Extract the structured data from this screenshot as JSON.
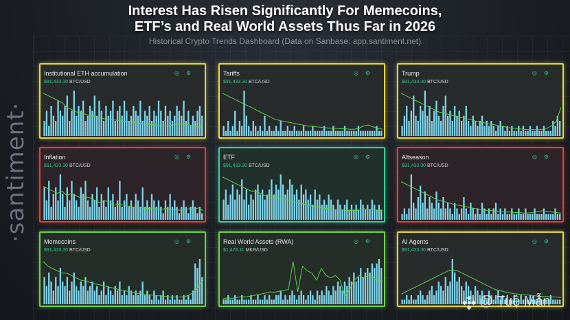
{
  "header": {
    "title_line1": "Interest Has Risen Significantly For Memecoins,",
    "title_line2": "ETF’s and Real World Assets Thus Far in 2026",
    "subtitle": "Historical Crypto Trends Dashboard (Data on Sanbase: app.santiment.net)"
  },
  "brand": {
    "logo_text": "·santiment·"
  },
  "watermark": {
    "text": "@ Tuệ Mẫn"
  },
  "colors": {
    "yellow": "#e3d941",
    "red": "#d8443a",
    "green": "#6fd04a",
    "teal": "#3bcf95",
    "bar": "#7fd3e8",
    "line": "#5ad14a"
  },
  "panels": [
    {
      "title": "Institutional ETH accumulation",
      "price": "$91,433.30",
      "unit": "BTC/USD",
      "border": "yellow"
    },
    {
      "title": "Tariffs",
      "price": "$91,433.30",
      "unit": "BTC/USD",
      "border": "yellow"
    },
    {
      "title": "Trump",
      "price": "$91,433.30",
      "unit": "BTC/USD",
      "border": "yellow"
    },
    {
      "title": "Inflation",
      "price": "$91,433.30",
      "unit": "BTC/USD",
      "border": "red"
    },
    {
      "title": "ETF",
      "price": "$91,433.30",
      "unit": "BTC/USD",
      "border": "teal"
    },
    {
      "title": "Altseason",
      "price": "$91,433.30",
      "unit": "BTC/USD",
      "border": "red"
    },
    {
      "title": "Memecoins",
      "price": "$91,433.30",
      "unit": "BTC/USD",
      "border": "green"
    },
    {
      "title": "Real World Assets (RWA)",
      "price": "$1,478.11",
      "unit": "MKR/USD",
      "border": "green"
    },
    {
      "title": "AI Agents",
      "price": "$91,433.30",
      "unit": "BTC/USD",
      "border": "yellow"
    }
  ],
  "chart_data": [
    {
      "type": "bar",
      "title": "Institutional ETH accumulation",
      "values": [
        3,
        5,
        2,
        6,
        4,
        3,
        7,
        5,
        4,
        6,
        8,
        3,
        5,
        9,
        4,
        6,
        5,
        7,
        3,
        4,
        6,
        5,
        8,
        4,
        7,
        5,
        3,
        6,
        4,
        5,
        7,
        3,
        5,
        6,
        4,
        7,
        5,
        3,
        4,
        6,
        5,
        4,
        7,
        3,
        5,
        4,
        6,
        3,
        5,
        4,
        7,
        5,
        3,
        6,
        4,
        5,
        3,
        4,
        6,
        5,
        4,
        7,
        3,
        5,
        2,
        4,
        3,
        5,
        6,
        4
      ],
      "line": [
        9,
        8.5,
        8,
        7.5,
        7,
        6,
        5.5,
        5,
        4.8,
        4.5,
        4.2,
        4,
        3.8,
        3.5,
        3.5,
        3.3,
        3.2,
        3,
        3,
        2.8,
        2.6,
        2.5,
        2.4,
        2.3,
        2.2,
        2,
        2,
        2.1,
        2.3,
        2.5,
        2.4,
        2.2,
        2,
        1.8,
        1.7
      ]
    },
    {
      "type": "bar",
      "title": "Tariffs",
      "values": [
        2,
        1,
        3,
        1,
        2,
        5,
        1,
        3,
        2,
        9,
        4,
        2,
        1,
        3,
        2,
        1,
        2,
        1,
        4,
        1,
        2,
        1,
        1,
        2,
        1,
        3,
        1,
        1,
        2,
        1,
        1,
        2,
        1,
        1,
        1,
        2,
        1,
        1,
        1,
        2,
        1,
        1,
        1,
        1,
        2,
        1,
        1,
        1,
        2,
        1,
        1,
        1,
        1,
        2,
        1,
        1,
        1,
        1,
        1,
        2,
        1,
        1,
        1,
        1,
        1,
        1,
        1,
        2,
        1,
        1
      ],
      "line": [
        9,
        8.5,
        8,
        7.5,
        7,
        6.5,
        6,
        5.5,
        5,
        4.5,
        4,
        3.5,
        3.2,
        3,
        2.8,
        2.6,
        2.4,
        2.2,
        2,
        1.9,
        1.8,
        1.7,
        1.6,
        1.5,
        1.5,
        1.4,
        1.4,
        1.3,
        1.3,
        1.5,
        2,
        2.2,
        1.8,
        1.5,
        1.3
      ]
    },
    {
      "type": "bar",
      "title": "Trump",
      "values": [
        2,
        4,
        6,
        3,
        5,
        8,
        4,
        3,
        6,
        5,
        9,
        4,
        6,
        3,
        5,
        7,
        4,
        3,
        6,
        8,
        4,
        5,
        3,
        6,
        4,
        5,
        3,
        4,
        6,
        3,
        2,
        4,
        3,
        2,
        3,
        4,
        2,
        3,
        2,
        3,
        2,
        1,
        2,
        3,
        2,
        1,
        2,
        1,
        2,
        1,
        1,
        2,
        1,
        2,
        1,
        1,
        2,
        1,
        1,
        2,
        1,
        1,
        2,
        1,
        1,
        1,
        3,
        2,
        4,
        3
      ],
      "line": [
        9,
        8.5,
        8,
        7.5,
        7,
        6.5,
        6,
        5.5,
        5,
        4.8,
        4.5,
        4.2,
        4,
        3.8,
        3.5,
        3.3,
        3,
        2.8,
        2.6,
        2.4,
        2.2,
        2,
        1.8,
        1.6,
        1.5,
        1.4,
        1.3,
        1.2,
        1.2,
        1.2,
        1.3,
        1.5,
        2,
        3,
        6
      ]
    },
    {
      "type": "bar",
      "title": "Inflation",
      "values": [
        5,
        3,
        6,
        2,
        4,
        5,
        3,
        7,
        4,
        2,
        5,
        3,
        6,
        4,
        3,
        2,
        5,
        4,
        6,
        3,
        2,
        4,
        3,
        5,
        2,
        4,
        3,
        2,
        5,
        3,
        4,
        2,
        3,
        6,
        2,
        3,
        4,
        2,
        3,
        2,
        4,
        3,
        2,
        5,
        2,
        3,
        2,
        4,
        3,
        2,
        3,
        2,
        1,
        3,
        2,
        4,
        2,
        3,
        2,
        1,
        2,
        3,
        2,
        1,
        2,
        3,
        2,
        1,
        2,
        1
      ],
      "line": [
        7,
        6.5,
        6,
        5.5,
        6,
        5,
        5.5,
        5,
        4.5,
        4.8,
        4.5,
        4,
        3.5,
        4,
        3.5,
        3,
        3.2,
        3,
        2.8,
        2.5,
        2.6,
        2.4,
        2.2,
        2.4,
        2.2,
        2,
        2.3,
        2.1,
        2,
        1.9,
        2,
        2.2,
        2,
        2.4,
        1.8
      ]
    },
    {
      "type": "bar",
      "title": "ETF",
      "values": [
        4,
        6,
        3,
        5,
        7,
        4,
        6,
        5,
        8,
        4,
        6,
        3,
        5,
        4,
        6,
        7,
        5,
        6,
        4,
        5,
        6,
        8,
        5,
        7,
        6,
        9,
        7,
        5,
        6,
        8,
        7,
        5,
        6,
        4,
        7,
        5,
        6,
        4,
        5,
        3,
        6,
        4,
        5,
        3,
        4,
        3,
        5,
        4,
        3,
        2,
        4,
        3,
        2,
        3,
        4,
        2,
        3,
        2,
        3,
        2,
        4,
        3,
        2,
        3,
        2,
        4,
        3,
        2,
        3,
        2
      ],
      "line": [
        9,
        8.5,
        8,
        7.5,
        7,
        6.5,
        6,
        6,
        5.5,
        5,
        5,
        4.8,
        4.5,
        4.3,
        4,
        3.8,
        3.5,
        3.3,
        3,
        2.8,
        2.6,
        2.4,
        2.3,
        2.2,
        2,
        2,
        1.9,
        1.8,
        1.8,
        1.9,
        2.2,
        2.1,
        2,
        1.9,
        1.8
      ]
    },
    {
      "type": "bar",
      "title": "Altseason",
      "values": [
        1,
        2,
        1,
        2,
        8,
        3,
        2,
        4,
        6,
        3,
        5,
        2,
        4,
        3,
        2,
        5,
        3,
        2,
        4,
        2,
        3,
        2,
        1,
        3,
        2,
        1,
        2,
        4,
        2,
        1,
        3,
        2,
        1,
        2,
        1,
        3,
        2,
        1,
        2,
        1,
        2,
        3,
        1,
        2,
        1,
        2,
        1,
        1,
        2,
        1,
        1,
        2,
        1,
        1,
        2,
        1,
        1,
        1,
        2,
        1,
        1,
        1,
        2,
        1,
        1,
        1,
        1,
        2,
        1,
        1
      ],
      "line": [
        8,
        7.5,
        7,
        6.5,
        6,
        5.5,
        5,
        4.5,
        4,
        3.8,
        3.5,
        3.2,
        3,
        2.8,
        2.6,
        2.4,
        2.2,
        2,
        1.9,
        1.8,
        1.7,
        1.6,
        1.5,
        1.5,
        1.4,
        1.4,
        1.3,
        1.3,
        1.4,
        1.6,
        1.8,
        1.6,
        1.5,
        1.4,
        1.3
      ]
    },
    {
      "type": "bar",
      "title": "Memecoins",
      "values": [
        6,
        4,
        7,
        5,
        3,
        6,
        4,
        8,
        5,
        4,
        6,
        3,
        5,
        7,
        4,
        3,
        5,
        4,
        6,
        3,
        4,
        5,
        3,
        4,
        2,
        3,
        5,
        2,
        4,
        3,
        2,
        4,
        3,
        5,
        2,
        3,
        2,
        4,
        3,
        2,
        3,
        2,
        3,
        5,
        2,
        3,
        2,
        1,
        3,
        2,
        1,
        2,
        3,
        1,
        2,
        1,
        2,
        1,
        2,
        1,
        1,
        2,
        1,
        2,
        1,
        3,
        9,
        8,
        10,
        6
      ],
      "line": [
        9,
        8,
        7.5,
        7,
        6.5,
        6.5,
        6,
        5.5,
        5,
        4.8,
        4.5,
        4.2,
        4,
        3.8,
        3.5,
        3.3,
        3,
        2.8,
        2.6,
        2.4,
        2.2,
        2,
        1.9,
        1.8,
        1.7,
        1.6,
        1.5,
        1.4,
        1.4,
        1.4,
        1.5,
        1.8,
        2.5,
        3.5,
        5
      ]
    },
    {
      "type": "bar",
      "title": "Real World Assets (RWA)",
      "values": [
        1,
        1,
        2,
        1,
        1,
        2,
        1,
        1,
        2,
        1,
        1,
        1,
        2,
        1,
        1,
        2,
        1,
        1,
        2,
        1,
        2,
        1,
        1,
        2,
        2,
        3,
        1,
        2,
        1,
        2,
        3,
        2,
        1,
        2,
        3,
        2,
        1,
        2,
        3,
        2,
        1,
        3,
        2,
        3,
        2,
        4,
        3,
        2,
        4,
        3,
        5,
        4,
        3,
        5,
        4,
        6,
        5,
        7,
        5,
        6,
        8,
        6,
        7,
        8,
        7,
        9,
        8,
        9,
        10,
        8
      ],
      "line": [
        1,
        1.2,
        1.1,
        1.3,
        1.5,
        1.4,
        1.6,
        1.8,
        2,
        2.2,
        2.5,
        2.4,
        2.6,
        2.8,
        3,
        9,
        2.5,
        8,
        7,
        6.5,
        5,
        7.5,
        6,
        5.5,
        6,
        5,
        1.5,
        3,
        5,
        6,
        5.5,
        6,
        5.5,
        5,
        4.8
      ]
    },
    {
      "type": "bar",
      "title": "AI Agents",
      "values": [
        1,
        1,
        2,
        1,
        2,
        1,
        1,
        2,
        3,
        2,
        1,
        2,
        3,
        4,
        2,
        3,
        5,
        4,
        3,
        6,
        4,
        5,
        10,
        7,
        5,
        6,
        4,
        3,
        5,
        4,
        3,
        2,
        4,
        3,
        2,
        3,
        2,
        1,
        3,
        2,
        1,
        2,
        3,
        1,
        2,
        1,
        2,
        1,
        1,
        2,
        1,
        1,
        2,
        1,
        1,
        1,
        2,
        1,
        1,
        1,
        2,
        1,
        1,
        1,
        1,
        2,
        1,
        1,
        1,
        1
      ],
      "line": [
        2,
        2.5,
        3,
        3.5,
        4,
        4.5,
        5,
        5.5,
        6,
        6.5,
        7,
        7.2,
        7,
        6.5,
        6,
        5.5,
        5,
        4.5,
        4,
        3.5,
        3,
        2.8,
        2.5,
        2.3,
        2.1,
        2,
        1.9,
        1.8,
        1.7,
        1.6,
        1.5,
        1.5,
        1.4,
        1.4,
        1.3
      ]
    }
  ]
}
